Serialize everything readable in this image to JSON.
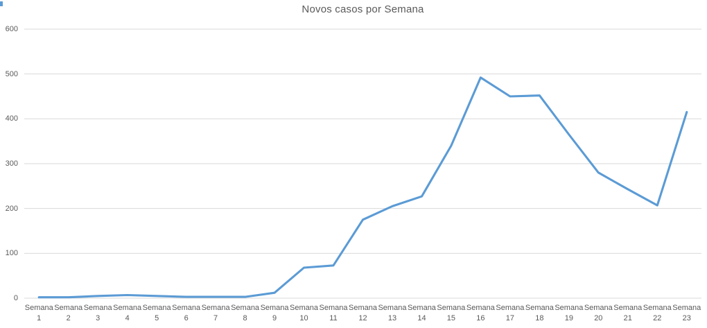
{
  "chart_data": {
    "type": "line",
    "title": "Novos casos por Semana",
    "categories": [
      "Semana 1",
      "Semana 2",
      "Semana 3",
      "Semana 4",
      "Semana 5",
      "Semana 6",
      "Semana 7",
      "Semana 8",
      "Semana 9",
      "Semana 10",
      "Semana 11",
      "Semana 12",
      "Semana 13",
      "Semana 14",
      "Semana 15",
      "Semana 16",
      "Semana 17",
      "Semana 18",
      "Semana 19",
      "Semana 20",
      "Semana 21",
      "Semana 22",
      "Semana 23"
    ],
    "values": [
      2,
      2,
      5,
      7,
      5,
      3,
      3,
      3,
      12,
      68,
      73,
      175,
      205,
      227,
      340,
      492,
      450,
      452,
      365,
      280,
      243,
      207,
      415
    ],
    "xlabel": "",
    "ylabel": "",
    "ylim": [
      0,
      600
    ],
    "y_ticks": [
      0,
      100,
      200,
      300,
      400,
      500,
      600
    ],
    "grid": true,
    "legend": "none",
    "colors": {
      "series": "#5B9BD5",
      "gridline": "#D9D9D9",
      "axis_text": "#595959",
      "title_text": "#595959",
      "corner_artifact": "#5B9BD5"
    }
  }
}
